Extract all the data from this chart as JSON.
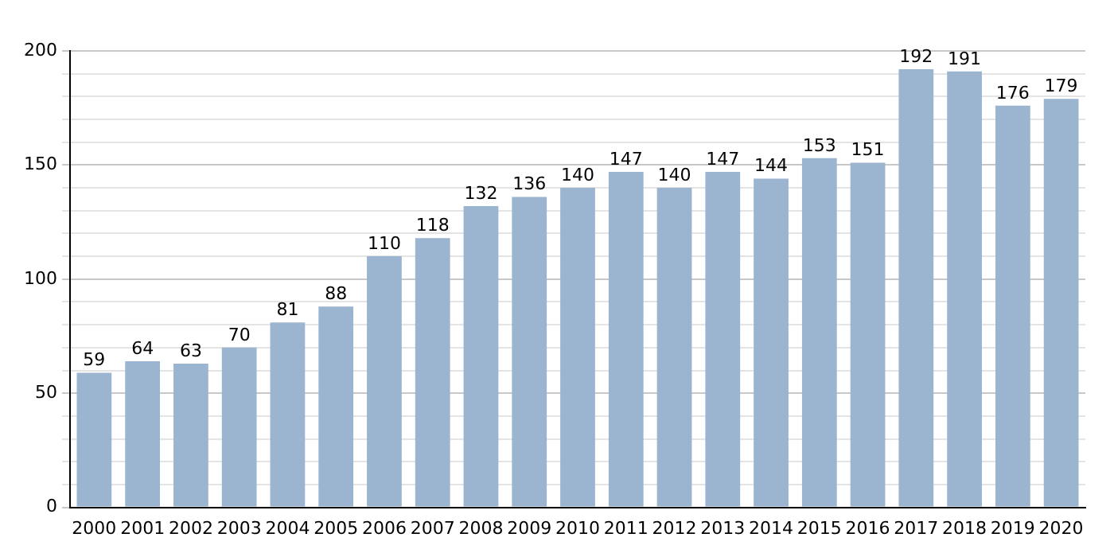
{
  "chart_data": {
    "type": "bar",
    "categories": [
      "2000",
      "2001",
      "2002",
      "2003",
      "2004",
      "2005",
      "2006",
      "2007",
      "2008",
      "2009",
      "2010",
      "2011",
      "2012",
      "2013",
      "2014",
      "2015",
      "2016",
      "2017",
      "2018",
      "2019",
      "2020"
    ],
    "values": [
      59,
      64,
      63,
      70,
      81,
      88,
      110,
      118,
      132,
      136,
      140,
      147,
      140,
      147,
      144,
      153,
      151,
      192,
      191,
      176,
      179
    ],
    "color": "#9bb4d0",
    "ylim": [
      0,
      200
    ],
    "yticks": [
      0,
      {
        "value": 10,
        "label": null
      },
      {
        "value": 20,
        "label": null
      },
      {
        "value": 30,
        "label": null
      },
      {
        "value": 40,
        "label": null
      },
      50,
      {
        "value": 60,
        "label": null
      },
      {
        "value": 70,
        "label": null
      },
      {
        "value": 80,
        "label": null
      },
      {
        "value": 90,
        "label": null
      },
      100,
      {
        "value": 110,
        "label": null
      },
      {
        "value": 120,
        "label": null
      },
      {
        "value": 130,
        "label": null
      },
      {
        "value": 140,
        "label": null
      },
      150,
      {
        "value": 160,
        "label": null
      },
      {
        "value": 170,
        "label": null
      },
      {
        "value": 180,
        "label": null
      },
      {
        "value": 190,
        "label": null
      },
      200
    ],
    "grid": "y",
    "data_labels": true
  }
}
